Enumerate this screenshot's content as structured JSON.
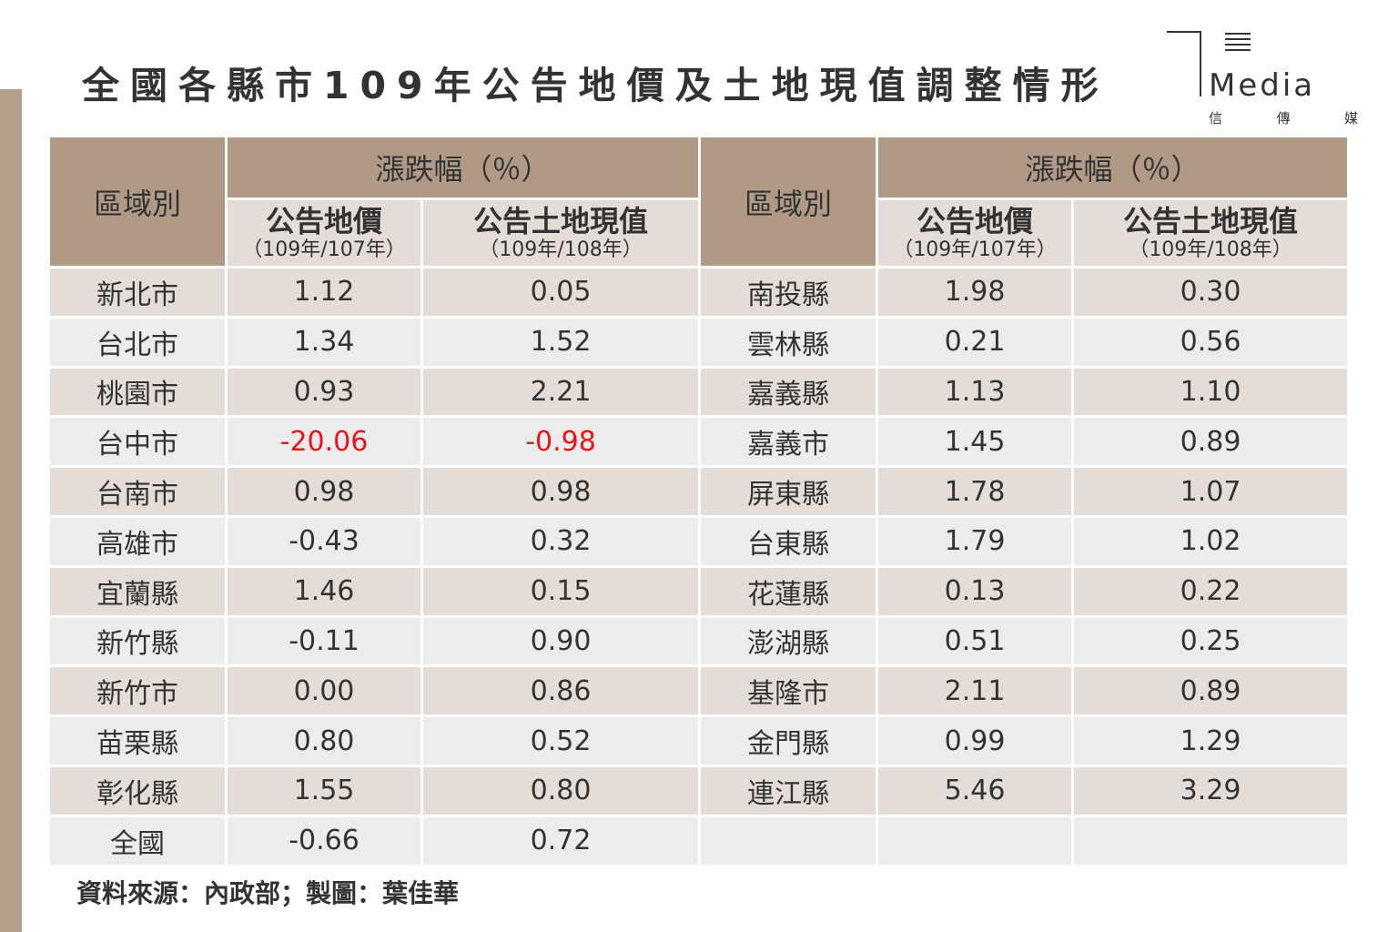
{
  "title": "全國各縣市109年公告地價及土地現值調整情形",
  "logo": {
    "word": "Media",
    "chars": [
      "信",
      "傳",
      "媒"
    ]
  },
  "headers": {
    "region": "區域別",
    "change": "漲跌幅（％）",
    "land_price": "公告地價",
    "land_price_period": "（109年/107年）",
    "land_value": "公告土地現值",
    "land_value_period": "（109年/108年）"
  },
  "colors": {
    "header_bg": "#b09a85",
    "odd_row": "#e4dcd6",
    "even_row": "#ececec",
    "negative_highlight": "#e8141a"
  },
  "rows": [
    {
      "l_region": "新北市",
      "l_price": "1.12",
      "l_value": "0.05",
      "r_region": "南投縣",
      "r_price": "1.98",
      "r_value": "0.30"
    },
    {
      "l_region": "台北市",
      "l_price": "1.34",
      "l_value": "1.52",
      "r_region": "雲林縣",
      "r_price": "0.21",
      "r_value": "0.56"
    },
    {
      "l_region": "桃園市",
      "l_price": "0.93",
      "l_value": "2.21",
      "r_region": "嘉義縣",
      "r_price": "1.13",
      "r_value": "1.10"
    },
    {
      "l_region": "台中市",
      "l_price": "-20.06",
      "l_value": "-0.98",
      "r_region": "嘉義市",
      "r_price": "1.45",
      "r_value": "0.89"
    },
    {
      "l_region": "台南市",
      "l_price": "0.98",
      "l_value": "0.98",
      "r_region": "屏東縣",
      "r_price": "1.78",
      "r_value": "1.07"
    },
    {
      "l_region": "高雄市",
      "l_price": "-0.43",
      "l_value": "0.32",
      "r_region": "台東縣",
      "r_price": "1.79",
      "r_value": "1.02"
    },
    {
      "l_region": "宜蘭縣",
      "l_price": "1.46",
      "l_value": "0.15",
      "r_region": "花蓮縣",
      "r_price": "0.13",
      "r_value": "0.22"
    },
    {
      "l_region": "新竹縣",
      "l_price": "-0.11",
      "l_value": "0.90",
      "r_region": "澎湖縣",
      "r_price": "0.51",
      "r_value": "0.25"
    },
    {
      "l_region": "新竹市",
      "l_price": "0.00",
      "l_value": "0.86",
      "r_region": "基隆市",
      "r_price": "2.11",
      "r_value": "0.89"
    },
    {
      "l_region": "苗栗縣",
      "l_price": "0.80",
      "l_value": "0.52",
      "r_region": "金門縣",
      "r_price": "0.99",
      "r_value": "1.29"
    },
    {
      "l_region": "彰化縣",
      "l_price": "1.55",
      "l_value": "0.80",
      "r_region": "連江縣",
      "r_price": "5.46",
      "r_value": "3.29"
    },
    {
      "l_region": "全國",
      "l_price": "-0.66",
      "l_value": "0.72",
      "r_region": "",
      "r_price": "",
      "r_value": ""
    }
  ],
  "red_cells": [
    [
      3,
      "l_price"
    ],
    [
      3,
      "l_value"
    ]
  ],
  "source": "資料來源：內政部；製圖：葉佳華"
}
